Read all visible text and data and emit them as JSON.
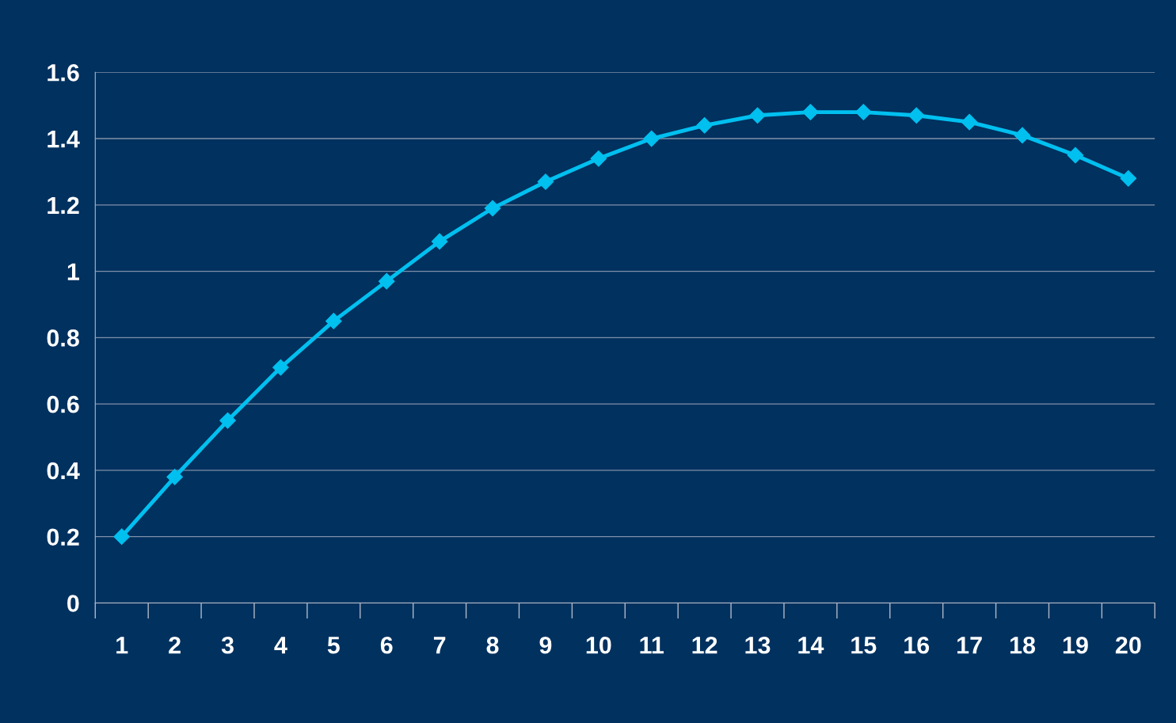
{
  "chart_data": {
    "type": "line",
    "categories": [
      "1",
      "2",
      "3",
      "4",
      "5",
      "6",
      "7",
      "8",
      "9",
      "10",
      "11",
      "12",
      "13",
      "14",
      "15",
      "16",
      "17",
      "18",
      "19",
      "20"
    ],
    "series": [
      {
        "color": "#00c0f0",
        "values": [
          0.2,
          0.38,
          0.55,
          0.71,
          0.85,
          0.97,
          1.09,
          1.19,
          1.27,
          1.34,
          1.4,
          1.44,
          1.47,
          1.48,
          1.48,
          1.47,
          1.45,
          1.41,
          1.35,
          1.28
        ]
      }
    ],
    "ylim": [
      0,
      1.6
    ],
    "yticks": [
      0,
      0.2,
      0.4,
      0.6,
      0.8,
      1,
      1.2,
      1.4,
      1.6
    ],
    "grid": "y",
    "marker": "diamond",
    "line_style": "solid"
  }
}
